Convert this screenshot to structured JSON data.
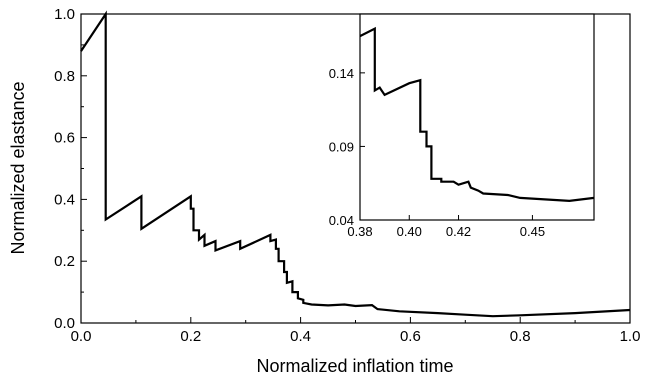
{
  "chart_data": [
    {
      "type": "line",
      "title": "",
      "xlabel": "Normalized inflation time",
      "ylabel": "Normalized elastance",
      "xlim": [
        0,
        1
      ],
      "ylim": [
        0,
        1
      ],
      "xticks": [
        "0.0",
        "0.2",
        "0.4",
        "0.6",
        "0.8",
        "1.0"
      ],
      "yticks": [
        "0.0",
        "0.2",
        "0.4",
        "0.6",
        "0.8",
        "1.0"
      ],
      "grid": false,
      "series": [
        {
          "color": "#000000",
          "points": [
            [
              0.0,
              0.88
            ],
            [
              0.045,
              1.0
            ],
            [
              0.045,
              0.335
            ],
            [
              0.11,
              0.41
            ],
            [
              0.11,
              0.305
            ],
            [
              0.2,
              0.41
            ],
            [
              0.2,
              0.37
            ],
            [
              0.205,
              0.37
            ],
            [
              0.205,
              0.3
            ],
            [
              0.215,
              0.3
            ],
            [
              0.215,
              0.27
            ],
            [
              0.225,
              0.285
            ],
            [
              0.225,
              0.25
            ],
            [
              0.245,
              0.265
            ],
            [
              0.245,
              0.235
            ],
            [
              0.29,
              0.265
            ],
            [
              0.29,
              0.24
            ],
            [
              0.345,
              0.285
            ],
            [
              0.345,
              0.265
            ],
            [
              0.355,
              0.27
            ],
            [
              0.355,
              0.24
            ],
            [
              0.36,
              0.24
            ],
            [
              0.36,
              0.2
            ],
            [
              0.37,
              0.2
            ],
            [
              0.37,
              0.165
            ],
            [
              0.375,
              0.165
            ],
            [
              0.375,
              0.13
            ],
            [
              0.385,
              0.135
            ],
            [
              0.385,
              0.1
            ],
            [
              0.395,
              0.1
            ],
            [
              0.395,
              0.08
            ],
            [
              0.405,
              0.075
            ],
            [
              0.405,
              0.065
            ],
            [
              0.42,
              0.06
            ],
            [
              0.45,
              0.057
            ],
            [
              0.48,
              0.06
            ],
            [
              0.5,
              0.055
            ],
            [
              0.53,
              0.058
            ],
            [
              0.54,
              0.045
            ],
            [
              0.58,
              0.038
            ],
            [
              0.65,
              0.032
            ],
            [
              0.7,
              0.027
            ],
            [
              0.75,
              0.022
            ],
            [
              0.8,
              0.025
            ],
            [
              0.9,
              0.032
            ],
            [
              1.0,
              0.042
            ]
          ]
        }
      ]
    },
    {
      "type": "line",
      "title": "",
      "xlabel": "",
      "ylabel": "",
      "xlim": [
        0.38,
        0.475
      ],
      "ylim": [
        0.04,
        0.18
      ],
      "xticks": [
        {
          "value": 0.38,
          "label": "0.38"
        },
        {
          "value": 0.4,
          "label": "0.40"
        },
        {
          "value": 0.42,
          "label": "0.42"
        },
        {
          "value": 0.45,
          "label": "0.45"
        }
      ],
      "yticks": [
        {
          "value": 0.04,
          "label": "0.04"
        },
        {
          "value": 0.09,
          "label": "0.09"
        },
        {
          "value": 0.14,
          "label": "0.14"
        }
      ],
      "grid": false,
      "series": [
        {
          "color": "#000000",
          "points": [
            [
              0.38,
              0.165
            ],
            [
              0.386,
              0.17
            ],
            [
              0.386,
              0.128
            ],
            [
              0.388,
              0.13
            ],
            [
              0.39,
              0.125
            ],
            [
              0.4,
              0.133
            ],
            [
              0.4045,
              0.135
            ],
            [
              0.4045,
              0.1
            ],
            [
              0.407,
              0.1
            ],
            [
              0.407,
              0.09
            ],
            [
              0.409,
              0.09
            ],
            [
              0.409,
              0.068
            ],
            [
              0.413,
              0.068
            ],
            [
              0.413,
              0.066
            ],
            [
              0.418,
              0.066
            ],
            [
              0.42,
              0.064
            ],
            [
              0.424,
              0.066
            ],
            [
              0.425,
              0.062
            ],
            [
              0.428,
              0.06
            ],
            [
              0.43,
              0.058
            ],
            [
              0.44,
              0.057
            ],
            [
              0.445,
              0.055
            ],
            [
              0.455,
              0.054
            ],
            [
              0.465,
              0.053
            ],
            [
              0.475,
              0.055
            ]
          ]
        }
      ]
    }
  ]
}
